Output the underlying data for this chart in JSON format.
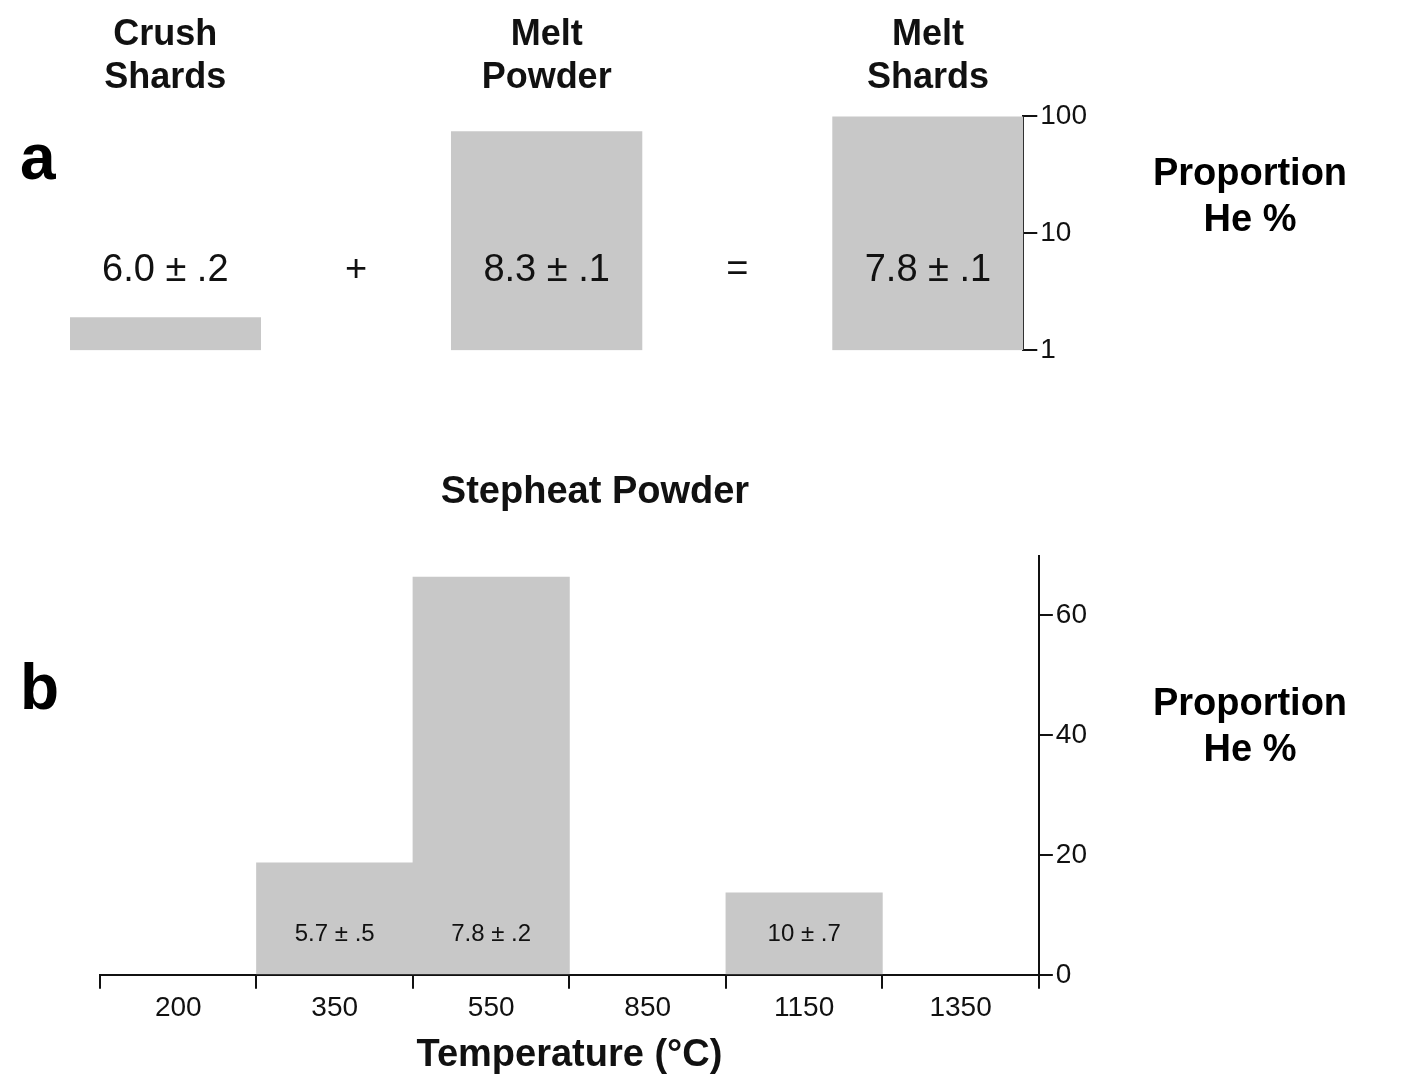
{
  "chart_data": [
    {
      "type": "bar",
      "categories": [
        "Crush Shards",
        null,
        "Melt Powder",
        null,
        "Melt Shards"
      ],
      "values": [
        1.9,
        null,
        74,
        null,
        100
      ],
      "color": "#c8c8c8",
      "ylabel": "Proportion He %",
      "log": true,
      "ylim": [
        1,
        100
      ],
      "yticks": [
        1,
        10,
        100
      ],
      "grid": false,
      "legend": false,
      "annotations": [
        "a",
        "6.0 ± .2",
        "+",
        "8.3 ± .1",
        "=",
        "7.8 ± .1"
      ]
    },
    {
      "type": "bar",
      "title": "Stepheat Powder",
      "xlabel": "Temperature (°C)",
      "ylabel": "Proportion He %",
      "categories": [
        "200",
        "350",
        "550",
        "850",
        "1150",
        "1350"
      ],
      "values": [
        null,
        18.7,
        66.4,
        null,
        13.7,
        null
      ],
      "color": "#c8c8c8",
      "ylim": [
        0,
        70
      ],
      "yticks": [
        0,
        20,
        40,
        60
      ],
      "grid": false,
      "legend": false,
      "annotations": [
        "b",
        "5.7 ± .5",
        "7.8 ± .2",
        "10 ± .7"
      ]
    }
  ]
}
